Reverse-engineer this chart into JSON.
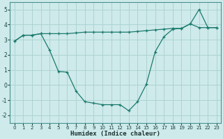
{
  "x": [
    0,
    1,
    2,
    3,
    4,
    5,
    6,
    7,
    8,
    9,
    10,
    11,
    12,
    13,
    14,
    15,
    16,
    17,
    18,
    19,
    20,
    21,
    22,
    23
  ],
  "line1": [
    2.9,
    3.3,
    3.3,
    3.4,
    3.4,
    3.4,
    3.4,
    3.45,
    3.5,
    3.5,
    3.5,
    3.5,
    3.5,
    3.5,
    3.55,
    3.6,
    3.65,
    3.7,
    3.75,
    3.75,
    4.05,
    3.8,
    3.8,
    3.8
  ],
  "line2": [
    2.9,
    3.3,
    3.3,
    3.4,
    2.3,
    0.9,
    0.85,
    -0.4,
    -1.1,
    -1.2,
    -1.3,
    -1.3,
    -1.3,
    -1.7,
    -1.1,
    0.05,
    2.2,
    3.2,
    3.7,
    3.75,
    4.05,
    5.0,
    3.8,
    3.8
  ],
  "line_color": "#1a7a6e",
  "bg_color": "#ceeaea",
  "grid_color": "#aacfcf",
  "xlabel": "Humidex (Indice chaleur)",
  "ylim": [
    -2.5,
    5.5
  ],
  "xlim": [
    -0.5,
    23.5
  ],
  "yticks": [
    -2,
    -1,
    0,
    1,
    2,
    3,
    4,
    5
  ],
  "xticks": [
    0,
    1,
    2,
    3,
    4,
    5,
    6,
    7,
    8,
    9,
    10,
    11,
    12,
    13,
    14,
    15,
    16,
    17,
    18,
    19,
    20,
    21,
    22,
    23
  ],
  "tick_fontsize": 5.0,
  "xlabel_fontsize": 6.5
}
